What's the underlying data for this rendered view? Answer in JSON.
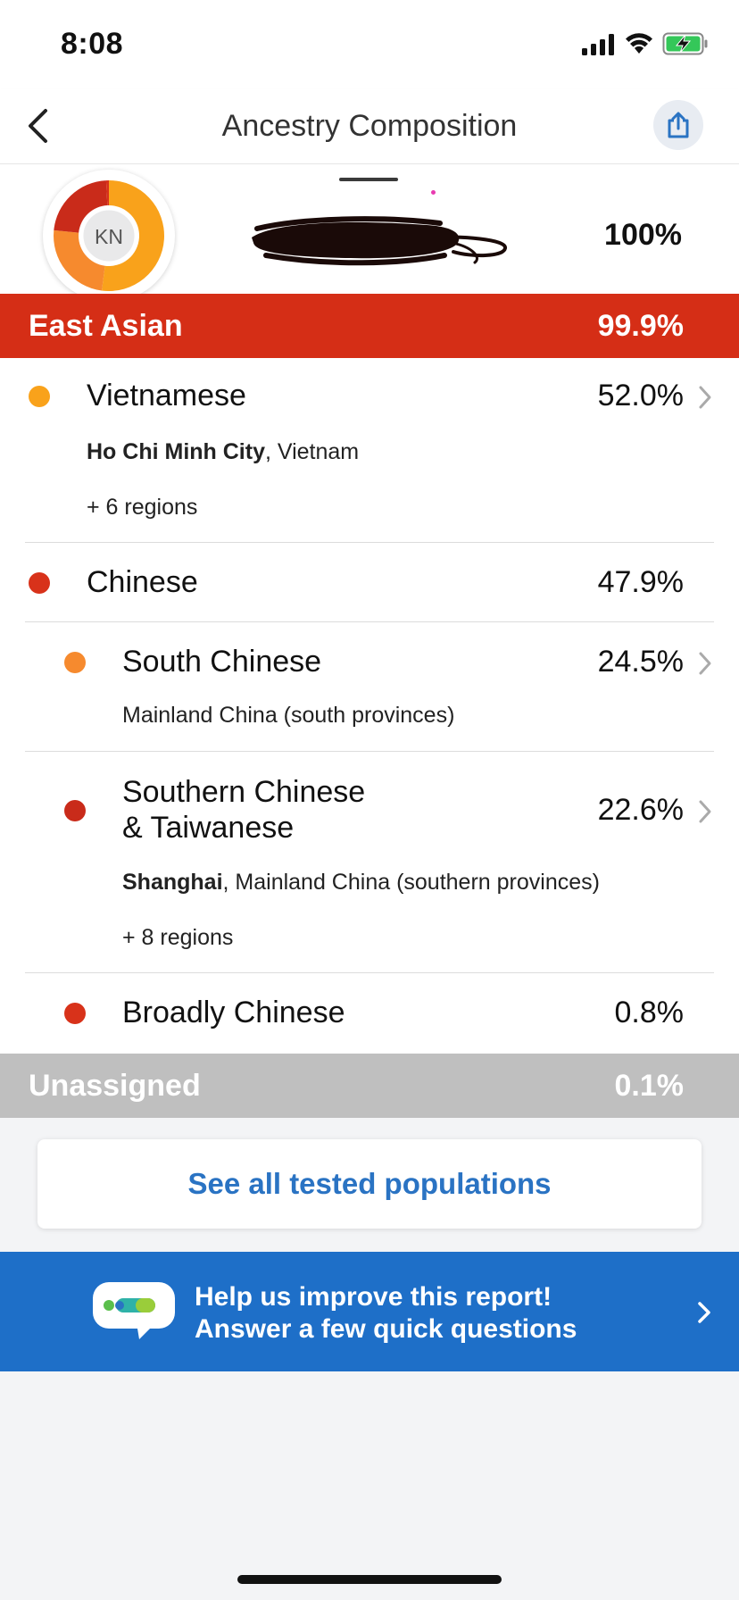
{
  "status_bar": {
    "time": "8:08"
  },
  "nav": {
    "title": "Ancestry Composition"
  },
  "profile": {
    "initials": "KN",
    "total_percent": "100%",
    "donut_segments": [
      {
        "name": "Vietnamese",
        "value": 52.0,
        "color": "#f9a21b"
      },
      {
        "name": "South Chinese",
        "value": 24.5,
        "color": "#f68a2e"
      },
      {
        "name": "Southern Chinese & Taiwanese",
        "value": 22.6,
        "color": "#c92b1a"
      },
      {
        "name": "Broadly Chinese",
        "value": 0.8,
        "color": "#d8321a"
      }
    ]
  },
  "east_asian": {
    "label": "East Asian",
    "percent": "99.9%",
    "color": "#d52e16"
  },
  "rows": {
    "vietnamese": {
      "label": "Vietnamese",
      "percent": "52.0%",
      "color": "#f9a21b",
      "city": "Ho Chi Minh City",
      "region_rest": ", Vietnam",
      "more": "+ 6 regions"
    },
    "chinese": {
      "label": "Chinese",
      "percent": "47.9%",
      "color": "#d8321a"
    },
    "south_chinese": {
      "label": "South Chinese",
      "percent": "24.5%",
      "color": "#f68a2e",
      "region": "Mainland China (south provinces)"
    },
    "southern_chinese": {
      "label_line1": "Southern Chinese",
      "label_line2": "& Taiwanese",
      "percent": "22.6%",
      "color": "#c92b1a",
      "city": "Shanghai",
      "region_rest": ", Mainland China (southern provinces)",
      "more": "+ 8 regions"
    },
    "broadly_chinese": {
      "label": "Broadly Chinese",
      "percent": "0.8%",
      "color": "#d8321a"
    }
  },
  "unassigned": {
    "label": "Unassigned",
    "percent": "0.1%"
  },
  "cta": {
    "label": "See all tested populations"
  },
  "survey": {
    "line1": "Help us improve this report!",
    "line2": "Answer a few quick questions"
  },
  "icons": [
    "back-chevron-icon",
    "share-icon",
    "signal-icon",
    "wifi-icon",
    "battery-charging-icon",
    "chevron-right-icon",
    "speech-bubble-icon"
  ]
}
